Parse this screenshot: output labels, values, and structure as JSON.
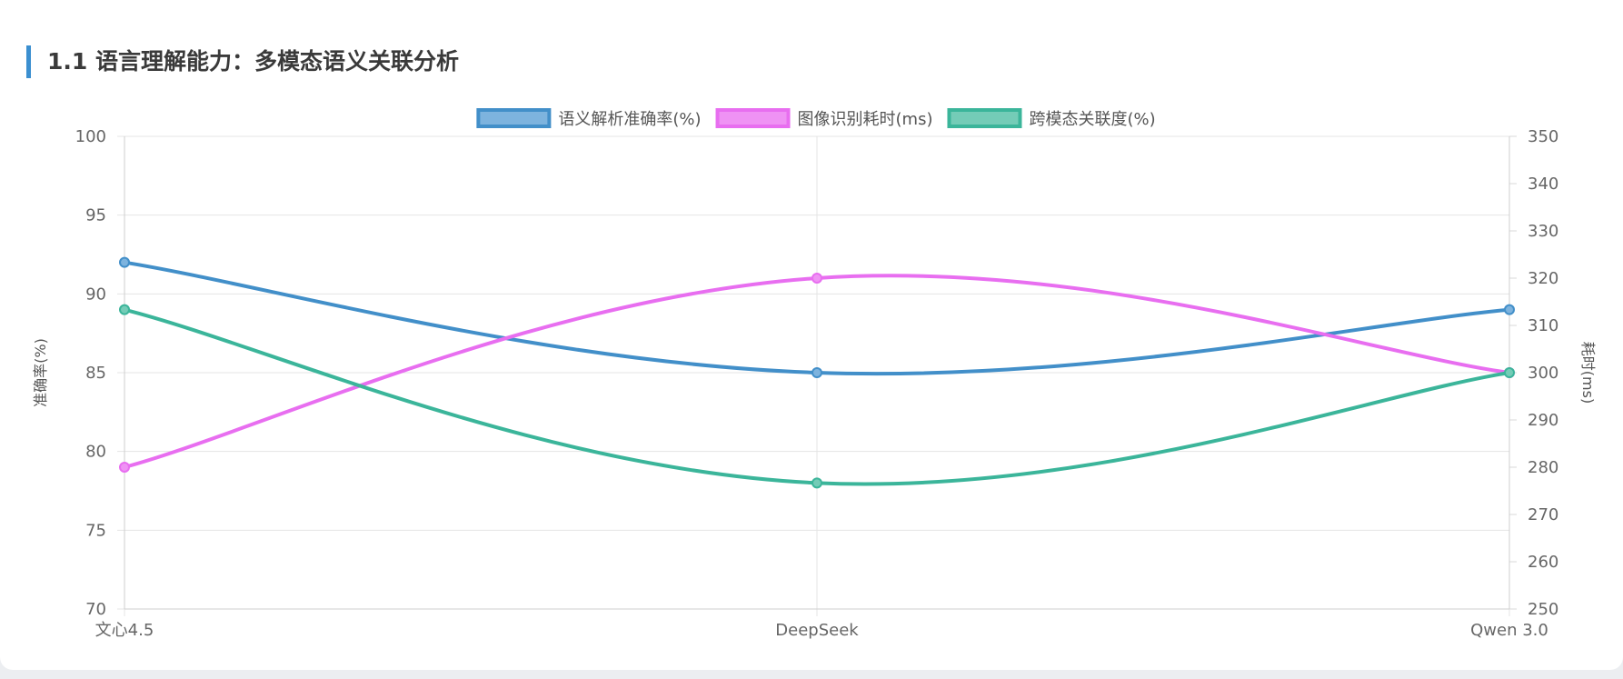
{
  "section": {
    "title": "1.1 语言理解能力：多模态语义关联分析"
  },
  "chart_data": {
    "type": "line",
    "categories": [
      "文心4.5",
      "DeepSeek",
      "Qwen 3.0"
    ],
    "series": [
      {
        "name": "语义解析准确率(%)",
        "axis": "left",
        "values": [
          92,
          85,
          89
        ],
        "color": "#428fc9",
        "fill": "#7db3de"
      },
      {
        "name": "图像识别耗时(ms)",
        "axis": "right",
        "values": [
          280,
          320,
          300
        ],
        "color": "#e86ef0",
        "fill": "#ef92f4"
      },
      {
        "name": "跨模态关联度(%)",
        "axis": "left",
        "values": [
          89,
          78,
          85
        ],
        "color": "#3bb59a",
        "fill": "#74ccb7"
      }
    ],
    "y_left": {
      "label": "准确率(%)",
      "min": 70,
      "max": 100,
      "step": 5
    },
    "y_right": {
      "label": "耗时(ms)",
      "min": 250,
      "max": 350,
      "step": 10
    },
    "grid": true,
    "legend": "top-center"
  }
}
